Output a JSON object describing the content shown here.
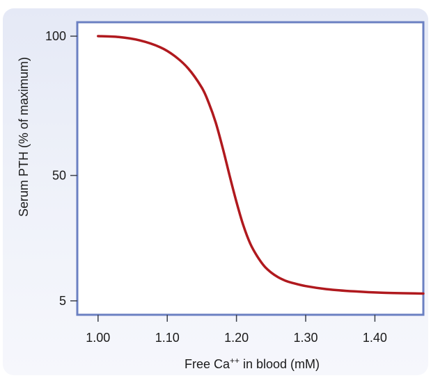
{
  "chart_data": {
    "type": "line",
    "xlabel": "Free Ca",
    "xlabel_superscript": "++",
    "xlabel_suffix": " in blood (mM)",
    "ylabel": "Serum PTH (% of maximum)",
    "x_ticks": [
      {
        "value": 1.0,
        "label": "1.00"
      },
      {
        "value": 1.1,
        "label": "1.10"
      },
      {
        "value": 1.2,
        "label": "1.20"
      },
      {
        "value": 1.3,
        "label": "1.30"
      },
      {
        "value": 1.4,
        "label": "1.40"
      }
    ],
    "y_ticks": [
      {
        "value": 100,
        "label": "100"
      },
      {
        "value": 50,
        "label": "50"
      },
      {
        "value": 5,
        "label": "5"
      }
    ],
    "xlim": [
      0.97,
      1.47
    ],
    "ylim": [
      0,
      105
    ],
    "grid": false,
    "colors": {
      "line": "#b0191e",
      "frame": "#6b80c2",
      "ticks": "#3a3f4a"
    },
    "series": [
      {
        "x": [
          1.0,
          1.03,
          1.06,
          1.09,
          1.11,
          1.13,
          1.15,
          1.16,
          1.17,
          1.18,
          1.19,
          1.2,
          1.21,
          1.22,
          1.23,
          1.24,
          1.25,
          1.26,
          1.27,
          1.28,
          1.3,
          1.33,
          1.37,
          1.41,
          1.47
        ],
        "y": [
          100,
          99.7,
          98.5,
          96,
          93,
          88.5,
          81.5,
          76,
          69,
          60,
          50,
          40.5,
          32,
          25.5,
          21,
          17.5,
          15.2,
          13.5,
          12.3,
          11.5,
          10.3,
          9.2,
          8.4,
          7.9,
          7.6
        ]
      }
    ]
  }
}
